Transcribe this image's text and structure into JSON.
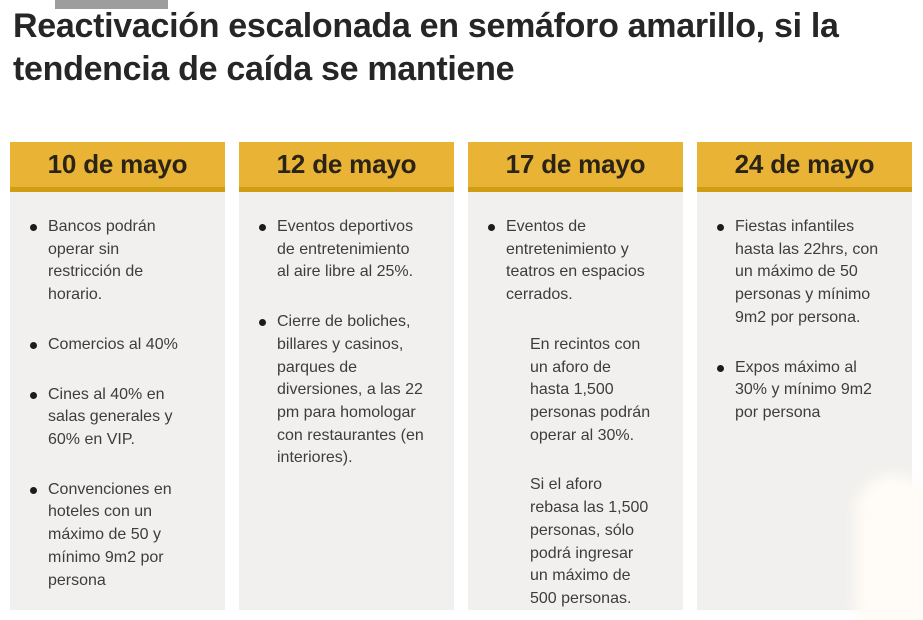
{
  "title": "Reactivación escalonada en semáforo amarillo, si la tendencia de caída se mantiene",
  "colors": {
    "header_bg": "#E9B435",
    "header_border": "#D09E15",
    "panel_bg": "#F1F0EE"
  },
  "columns": [
    {
      "date": "10 de mayo",
      "items": [
        {
          "type": "bullet",
          "text": "Bancos podrán operar sin restricción de horario."
        },
        {
          "type": "bullet",
          "text": "Comercios al 40%"
        },
        {
          "type": "bullet",
          "text": "Cines al 40% en salas generales y 60% en VIP."
        },
        {
          "type": "bullet",
          "text": "Convenciones en hoteles con un máximo de 50 y mínimo 9m2 por persona"
        }
      ]
    },
    {
      "date": "12 de mayo",
      "items": [
        {
          "type": "bullet",
          "text": "Eventos deportivos de entretenimiento al aire libre al 25%."
        },
        {
          "type": "bullet",
          "text": "Cierre de boliches, billares y casinos, parques de diversiones, a las 22 pm para homologar con restaurantes (en interiores)."
        }
      ]
    },
    {
      "date": "17 de mayo",
      "items": [
        {
          "type": "bullet",
          "text": "Eventos de entretenimiento y teatros en espacios cerrados."
        },
        {
          "type": "sub",
          "text": "En recintos con un aforo de hasta 1,500 personas podrán operar al 30%."
        },
        {
          "type": "sub",
          "text": "Si el aforo rebasa las 1,500 personas, sólo podrá ingresar un máximo de 500 personas."
        }
      ]
    },
    {
      "date": "24 de mayo",
      "items": [
        {
          "type": "bullet",
          "text": "Fiestas infantiles hasta las 22hrs, con un máximo de 50 personas y mínimo 9m2 por persona."
        },
        {
          "type": "bullet",
          "text": "Expos máximo al 30% y mínimo 9m2 por persona"
        }
      ]
    }
  ]
}
